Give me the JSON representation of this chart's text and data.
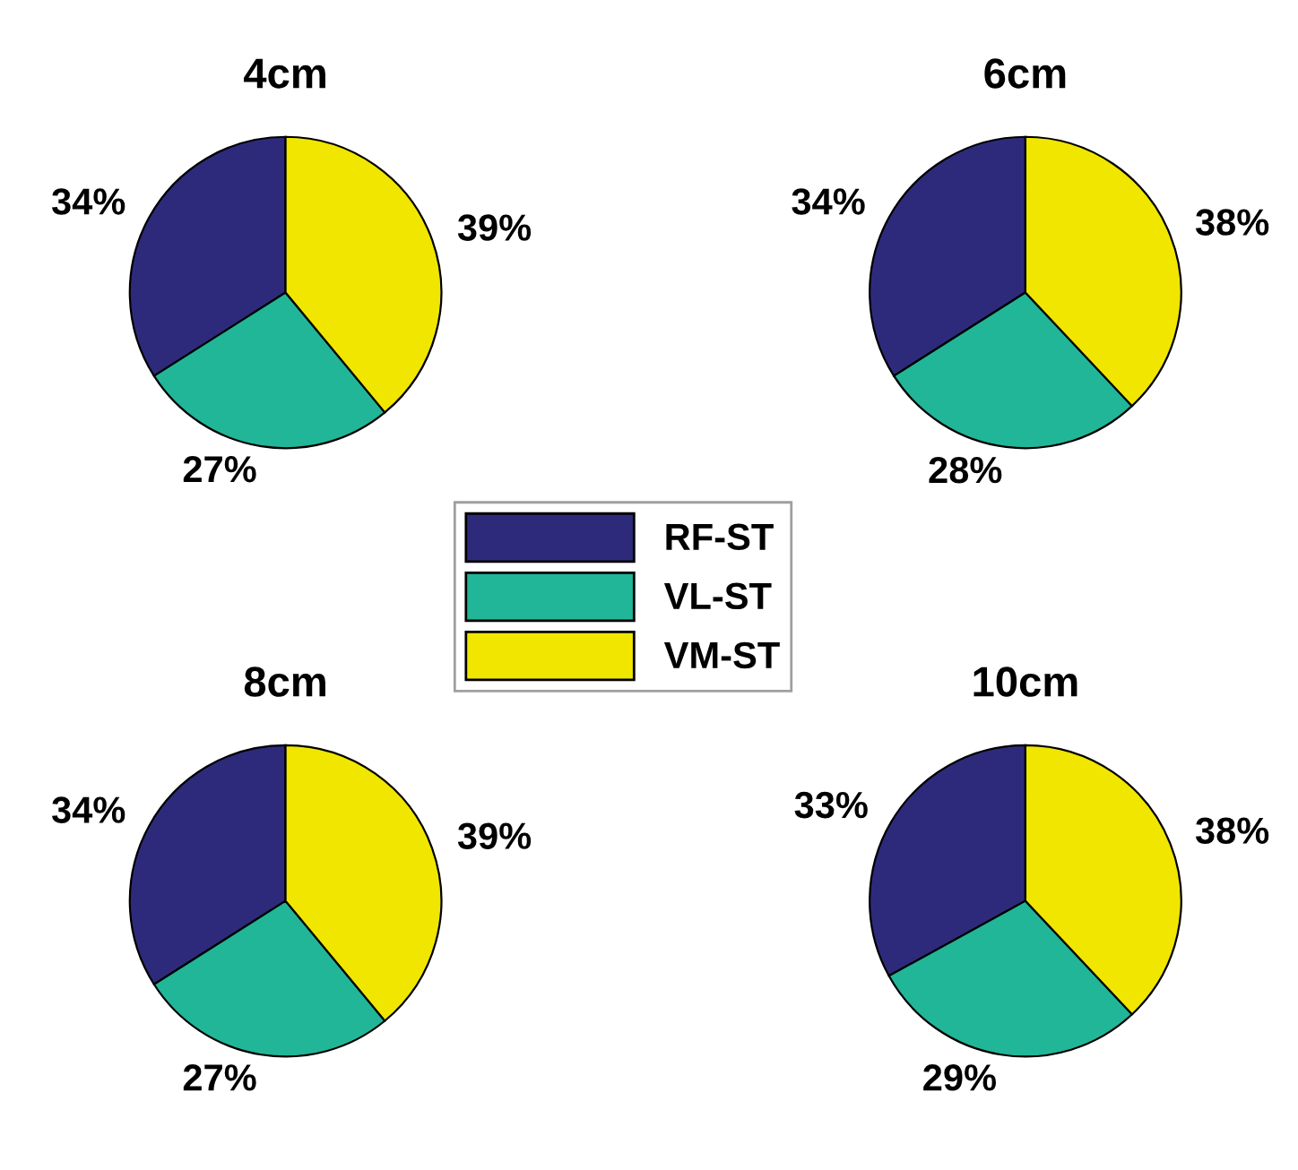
{
  "chart_data": [
    {
      "type": "pie",
      "title": "4cm",
      "categories": [
        "RF-ST",
        "VL-ST",
        "VM-ST"
      ],
      "values": [
        34,
        27,
        39
      ],
      "colors": [
        "#2e2a7b",
        "#21b698",
        "#f0e600"
      ],
      "value_labels": [
        "34%",
        "27%",
        "39%"
      ],
      "legend": "bottom right"
    },
    {
      "type": "pie",
      "title": "6cm",
      "categories": [
        null,
        null,
        null
      ],
      "values": [
        34,
        28,
        38
      ],
      "colors": [
        "#2e2a7b",
        "#21b698",
        "#f0e600"
      ],
      "value_labels": [
        "34%",
        "28%",
        "38%"
      ]
    },
    {
      "type": "pie",
      "title": "8cm",
      "categories": [
        null,
        null,
        null
      ],
      "values": [
        34,
        27,
        39
      ],
      "colors": [
        "#2e2a7b",
        "#21b698",
        "#f0e600"
      ],
      "value_labels": [
        "34%",
        "27%",
        "39%"
      ]
    },
    {
      "type": "pie",
      "title": "10cm",
      "categories": [
        null,
        null,
        null
      ],
      "values": [
        33,
        29,
        38
      ],
      "colors": [
        "#2e2a7b",
        "#21b698",
        "#f0e600"
      ],
      "value_labels": [
        "33%",
        "29%",
        "38%"
      ]
    }
  ]
}
